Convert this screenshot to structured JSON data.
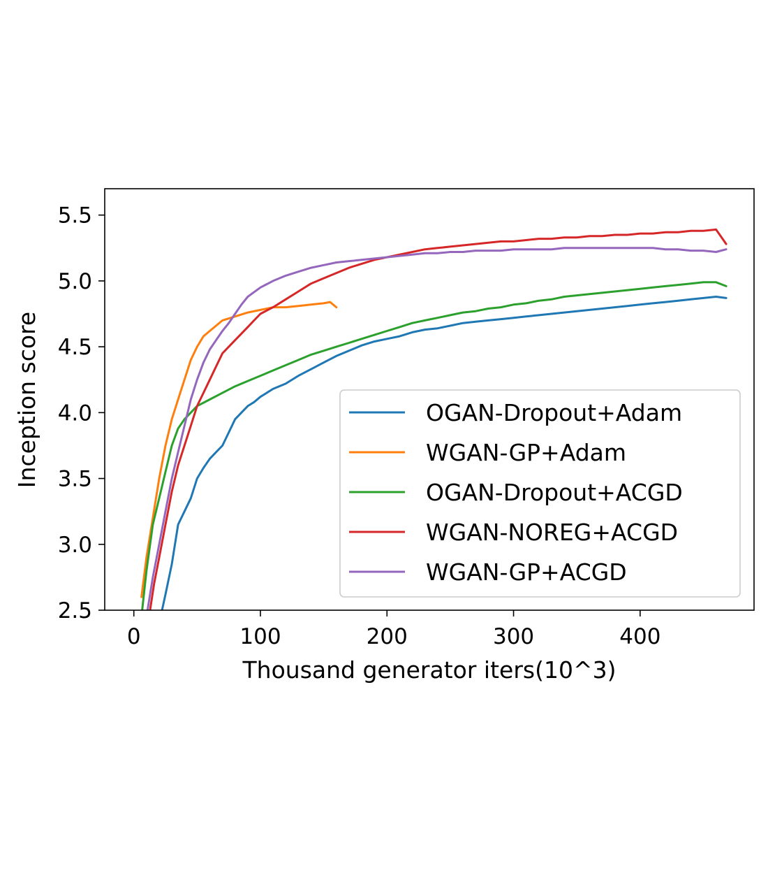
{
  "chart_data": {
    "type": "line",
    "title": "",
    "xlabel": "Thousand generator iters(10^3)",
    "ylabel": "Inception score",
    "xlim": [
      -23,
      490
    ],
    "ylim": [
      2.5,
      5.7
    ],
    "xticks": [
      0,
      100,
      200,
      300,
      400
    ],
    "yticks": [
      2.5,
      3.0,
      3.5,
      4.0,
      4.5,
      5.0,
      5.5
    ],
    "xtick_labels": [
      "0",
      "100",
      "200",
      "300",
      "400"
    ],
    "ytick_labels": [
      "2.5",
      "3.0",
      "3.5",
      "4.0",
      "4.5",
      "5.0",
      "5.5"
    ],
    "grid": false,
    "legend_position": "lower-right",
    "series": [
      {
        "name": "OGAN-Dropout+Adam",
        "color": "#1f77b4",
        "points": [
          [
            20,
            2.4
          ],
          [
            25,
            2.62
          ],
          [
            30,
            2.85
          ],
          [
            35,
            3.15
          ],
          [
            40,
            3.25
          ],
          [
            45,
            3.35
          ],
          [
            50,
            3.5
          ],
          [
            55,
            3.58
          ],
          [
            60,
            3.65
          ],
          [
            65,
            3.7
          ],
          [
            70,
            3.75
          ],
          [
            75,
            3.85
          ],
          [
            80,
            3.95
          ],
          [
            85,
            4.0
          ],
          [
            90,
            4.05
          ],
          [
            95,
            4.08
          ],
          [
            100,
            4.12
          ],
          [
            110,
            4.18
          ],
          [
            120,
            4.22
          ],
          [
            130,
            4.28
          ],
          [
            140,
            4.33
          ],
          [
            150,
            4.38
          ],
          [
            160,
            4.43
          ],
          [
            170,
            4.47
          ],
          [
            180,
            4.51
          ],
          [
            190,
            4.54
          ],
          [
            200,
            4.56
          ],
          [
            210,
            4.58
          ],
          [
            220,
            4.61
          ],
          [
            230,
            4.63
          ],
          [
            240,
            4.64
          ],
          [
            250,
            4.66
          ],
          [
            260,
            4.68
          ],
          [
            270,
            4.69
          ],
          [
            280,
            4.7
          ],
          [
            290,
            4.71
          ],
          [
            300,
            4.72
          ],
          [
            310,
            4.73
          ],
          [
            320,
            4.74
          ],
          [
            330,
            4.75
          ],
          [
            340,
            4.76
          ],
          [
            350,
            4.77
          ],
          [
            360,
            4.78
          ],
          [
            370,
            4.79
          ],
          [
            380,
            4.8
          ],
          [
            390,
            4.81
          ],
          [
            400,
            4.82
          ],
          [
            410,
            4.83
          ],
          [
            420,
            4.84
          ],
          [
            430,
            4.85
          ],
          [
            440,
            4.86
          ],
          [
            450,
            4.87
          ],
          [
            460,
            4.88
          ],
          [
            468,
            4.87
          ]
        ]
      },
      {
        "name": "WGAN-GP+Adam",
        "color": "#ff7f0e",
        "points": [
          [
            6,
            2.6
          ],
          [
            10,
            2.9
          ],
          [
            15,
            3.2
          ],
          [
            20,
            3.5
          ],
          [
            25,
            3.75
          ],
          [
            30,
            3.95
          ],
          [
            35,
            4.1
          ],
          [
            40,
            4.25
          ],
          [
            45,
            4.4
          ],
          [
            50,
            4.5
          ],
          [
            55,
            4.58
          ],
          [
            60,
            4.62
          ],
          [
            65,
            4.66
          ],
          [
            70,
            4.7
          ],
          [
            80,
            4.73
          ],
          [
            90,
            4.76
          ],
          [
            100,
            4.78
          ],
          [
            110,
            4.8
          ],
          [
            120,
            4.8
          ],
          [
            130,
            4.81
          ],
          [
            140,
            4.82
          ],
          [
            150,
            4.83
          ],
          [
            155,
            4.84
          ],
          [
            160,
            4.8
          ]
        ]
      },
      {
        "name": "OGAN-Dropout+ACGD",
        "color": "#2ca02c",
        "points": [
          [
            6,
            2.45
          ],
          [
            10,
            2.8
          ],
          [
            15,
            3.15
          ],
          [
            20,
            3.35
          ],
          [
            25,
            3.55
          ],
          [
            30,
            3.75
          ],
          [
            35,
            3.88
          ],
          [
            40,
            3.95
          ],
          [
            45,
            4.0
          ],
          [
            50,
            4.05
          ],
          [
            60,
            4.1
          ],
          [
            70,
            4.15
          ],
          [
            80,
            4.2
          ],
          [
            90,
            4.24
          ],
          [
            100,
            4.28
          ],
          [
            110,
            4.32
          ],
          [
            120,
            4.36
          ],
          [
            130,
            4.4
          ],
          [
            140,
            4.44
          ],
          [
            150,
            4.47
          ],
          [
            160,
            4.5
          ],
          [
            170,
            4.53
          ],
          [
            180,
            4.56
          ],
          [
            190,
            4.59
          ],
          [
            200,
            4.62
          ],
          [
            210,
            4.65
          ],
          [
            220,
            4.68
          ],
          [
            230,
            4.7
          ],
          [
            240,
            4.72
          ],
          [
            250,
            4.74
          ],
          [
            260,
            4.76
          ],
          [
            270,
            4.77
          ],
          [
            280,
            4.79
          ],
          [
            290,
            4.8
          ],
          [
            300,
            4.82
          ],
          [
            310,
            4.83
          ],
          [
            320,
            4.85
          ],
          [
            330,
            4.86
          ],
          [
            340,
            4.88
          ],
          [
            350,
            4.89
          ],
          [
            360,
            4.9
          ],
          [
            370,
            4.91
          ],
          [
            380,
            4.92
          ],
          [
            390,
            4.93
          ],
          [
            400,
            4.94
          ],
          [
            410,
            4.95
          ],
          [
            420,
            4.96
          ],
          [
            430,
            4.97
          ],
          [
            440,
            4.98
          ],
          [
            450,
            4.99
          ],
          [
            460,
            4.99
          ],
          [
            468,
            4.96
          ]
        ]
      },
      {
        "name": "WGAN-NOREG+ACGD",
        "color": "#d62728",
        "points": [
          [
            12,
            2.45
          ],
          [
            16,
            2.7
          ],
          [
            20,
            2.9
          ],
          [
            25,
            3.15
          ],
          [
            30,
            3.4
          ],
          [
            35,
            3.6
          ],
          [
            40,
            3.75
          ],
          [
            45,
            3.9
          ],
          [
            50,
            4.05
          ],
          [
            55,
            4.15
          ],
          [
            60,
            4.25
          ],
          [
            65,
            4.35
          ],
          [
            70,
            4.45
          ],
          [
            75,
            4.5
          ],
          [
            80,
            4.55
          ],
          [
            85,
            4.6
          ],
          [
            90,
            4.65
          ],
          [
            95,
            4.7
          ],
          [
            100,
            4.75
          ],
          [
            110,
            4.8
          ],
          [
            120,
            4.86
          ],
          [
            130,
            4.92
          ],
          [
            140,
            4.98
          ],
          [
            150,
            5.02
          ],
          [
            160,
            5.06
          ],
          [
            170,
            5.1
          ],
          [
            180,
            5.13
          ],
          [
            190,
            5.16
          ],
          [
            200,
            5.18
          ],
          [
            210,
            5.2
          ],
          [
            220,
            5.22
          ],
          [
            230,
            5.24
          ],
          [
            240,
            5.25
          ],
          [
            250,
            5.26
          ],
          [
            260,
            5.27
          ],
          [
            270,
            5.28
          ],
          [
            280,
            5.29
          ],
          [
            290,
            5.3
          ],
          [
            300,
            5.3
          ],
          [
            310,
            5.31
          ],
          [
            320,
            5.32
          ],
          [
            330,
            5.32
          ],
          [
            340,
            5.33
          ],
          [
            350,
            5.33
          ],
          [
            360,
            5.34
          ],
          [
            370,
            5.34
          ],
          [
            380,
            5.35
          ],
          [
            390,
            5.35
          ],
          [
            400,
            5.36
          ],
          [
            410,
            5.36
          ],
          [
            420,
            5.37
          ],
          [
            430,
            5.37
          ],
          [
            440,
            5.38
          ],
          [
            450,
            5.38
          ],
          [
            460,
            5.39
          ],
          [
            468,
            5.28
          ]
        ]
      },
      {
        "name": "WGAN-GP+ACGD",
        "color": "#9467bd",
        "points": [
          [
            10,
            2.45
          ],
          [
            15,
            2.75
          ],
          [
            20,
            3.0
          ],
          [
            25,
            3.25
          ],
          [
            30,
            3.5
          ],
          [
            35,
            3.7
          ],
          [
            40,
            3.9
          ],
          [
            45,
            4.1
          ],
          [
            50,
            4.25
          ],
          [
            55,
            4.38
          ],
          [
            60,
            4.48
          ],
          [
            65,
            4.55
          ],
          [
            70,
            4.62
          ],
          [
            75,
            4.68
          ],
          [
            80,
            4.75
          ],
          [
            85,
            4.82
          ],
          [
            90,
            4.88
          ],
          [
            100,
            4.95
          ],
          [
            110,
            5.0
          ],
          [
            120,
            5.04
          ],
          [
            130,
            5.07
          ],
          [
            140,
            5.1
          ],
          [
            150,
            5.12
          ],
          [
            160,
            5.14
          ],
          [
            170,
            5.15
          ],
          [
            180,
            5.16
          ],
          [
            190,
            5.17
          ],
          [
            200,
            5.18
          ],
          [
            210,
            5.19
          ],
          [
            220,
            5.2
          ],
          [
            230,
            5.21
          ],
          [
            240,
            5.21
          ],
          [
            250,
            5.22
          ],
          [
            260,
            5.22
          ],
          [
            270,
            5.23
          ],
          [
            280,
            5.23
          ],
          [
            290,
            5.23
          ],
          [
            300,
            5.24
          ],
          [
            310,
            5.24
          ],
          [
            320,
            5.24
          ],
          [
            330,
            5.24
          ],
          [
            340,
            5.25
          ],
          [
            350,
            5.25
          ],
          [
            360,
            5.25
          ],
          [
            370,
            5.25
          ],
          [
            380,
            5.25
          ],
          [
            390,
            5.25
          ],
          [
            400,
            5.25
          ],
          [
            410,
            5.25
          ],
          [
            420,
            5.24
          ],
          [
            430,
            5.24
          ],
          [
            440,
            5.23
          ],
          [
            450,
            5.23
          ],
          [
            460,
            5.22
          ],
          [
            468,
            5.24
          ]
        ]
      }
    ]
  }
}
